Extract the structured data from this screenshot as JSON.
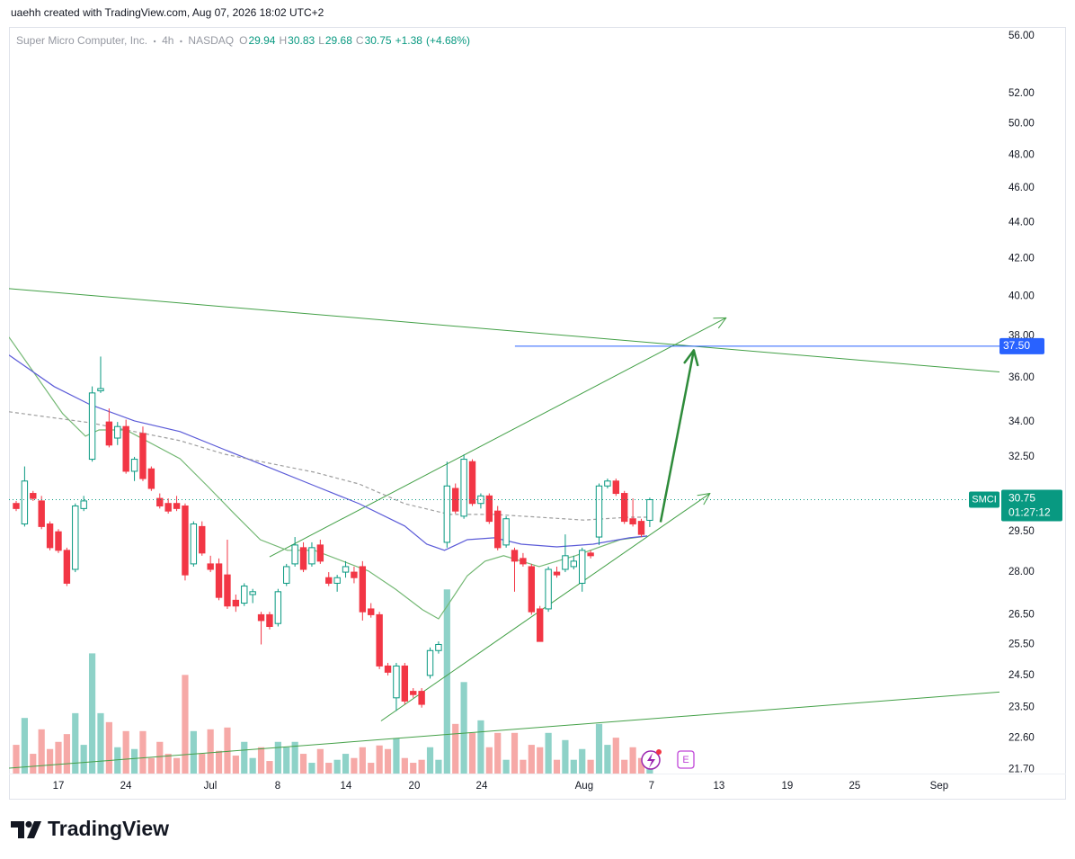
{
  "header": {
    "credit": "uaehh created with TradingView.com, Aug 07, 2026 18:02 UTC+2"
  },
  "chart_data": {
    "type": "candlestick",
    "symbol": "Super Micro Computer, Inc.",
    "interval": "4h",
    "exchange": "NASDAQ",
    "legend_ohlc": [
      {
        "label": "O",
        "value": 29.94
      },
      {
        "label": "H",
        "value": 30.83
      },
      {
        "label": "L",
        "value": 29.68
      },
      {
        "label": "C",
        "value": 30.75
      }
    ],
    "change": "+1.38",
    "change_pct": "(+4.68%)",
    "open": [
      30.6,
      29.8,
      31.0,
      30.7,
      29.8,
      29.5,
      28.8,
      28.1,
      30.4,
      32.4,
      35.4,
      34.0,
      33.3,
      33.8,
      31.9,
      33.5,
      32.0,
      30.8,
      30.6,
      30.6,
      30.5,
      28.3,
      29.7,
      28.3,
      28.3,
      27.9,
      27.0,
      26.9,
      27.2,
      26.5,
      26.5,
      26.2,
      27.6,
      28.3,
      28.9,
      28.3,
      29.0,
      27.8,
      27.6,
      28.0,
      28.0,
      28.2,
      26.7,
      26.5,
      24.8,
      23.8,
      24.8,
      24.0,
      24.0,
      24.5,
      25.3,
      29.1,
      31.2,
      30.1,
      32.3,
      30.6,
      30.9,
      30.3,
      29.0,
      28.8,
      28.5,
      28.2,
      26.7,
      26.7,
      28.0,
      28.1,
      28.2,
      27.6,
      28.7,
      29.3,
      31.3,
      31.5,
      31.0,
      30.0,
      29.9,
      29.94
    ],
    "high": [
      30.7,
      32.1,
      31.1,
      30.9,
      29.9,
      29.6,
      28.9,
      30.6,
      30.9,
      35.6,
      37.0,
      34.6,
      34.0,
      34.1,
      32.5,
      33.8,
      32.1,
      31.0,
      30.8,
      30.9,
      30.6,
      29.9,
      29.9,
      28.6,
      28.5,
      29.2,
      27.2,
      27.6,
      27.4,
      26.6,
      26.6,
      27.4,
      28.3,
      29.3,
      29.1,
      29.1,
      29.2,
      28.0,
      27.9,
      28.4,
      28.2,
      28.4,
      26.9,
      26.6,
      24.9,
      24.9,
      24.9,
      24.1,
      24.1,
      25.4,
      25.6,
      32.3,
      31.4,
      32.6,
      32.4,
      31.0,
      31.0,
      30.5,
      30.1,
      28.9,
      28.7,
      28.3,
      26.8,
      28.2,
      28.2,
      29.4,
      28.6,
      28.9,
      28.8,
      31.4,
      31.6,
      31.6,
      31.1,
      30.8,
      30.0,
      30.83
    ],
    "low": [
      30.3,
      29.7,
      30.7,
      29.6,
      28.8,
      28.7,
      27.5,
      28.0,
      30.3,
      32.3,
      35.3,
      32.9,
      33.0,
      31.8,
      31.5,
      31.5,
      31.1,
      30.4,
      30.2,
      30.3,
      27.7,
      28.2,
      28.6,
      28.0,
      27.0,
      26.7,
      26.6,
      26.8,
      26.9,
      25.5,
      26.0,
      26.1,
      27.5,
      28.2,
      28.0,
      28.2,
      28.3,
      27.5,
      27.3,
      27.8,
      27.6,
      26.3,
      26.4,
      24.7,
      24.5,
      23.4,
      23.6,
      23.8,
      23.5,
      24.4,
      25.2,
      28.9,
      30.2,
      30.0,
      30.5,
      30.4,
      29.8,
      28.8,
      28.9,
      27.3,
      28.2,
      26.5,
      25.6,
      26.6,
      27.8,
      28.0,
      28.1,
      27.3,
      28.5,
      29.0,
      31.2,
      30.9,
      29.8,
      29.7,
      29.3,
      29.68
    ],
    "close": [
      30.4,
      31.5,
      30.8,
      29.7,
      28.9,
      28.8,
      27.6,
      30.5,
      30.7,
      35.3,
      35.5,
      33.0,
      33.8,
      31.9,
      32.4,
      31.6,
      31.2,
      30.5,
      30.3,
      30.4,
      27.9,
      29.8,
      28.7,
      28.1,
      27.1,
      26.8,
      26.8,
      27.5,
      27.3,
      26.3,
      26.1,
      27.3,
      28.2,
      29.0,
      28.1,
      28.9,
      28.4,
      27.6,
      27.8,
      28.2,
      27.8,
      26.6,
      26.5,
      24.8,
      24.6,
      24.8,
      23.7,
      23.9,
      23.6,
      25.3,
      25.5,
      31.3,
      30.3,
      32.4,
      30.6,
      30.9,
      29.9,
      28.9,
      30.0,
      28.4,
      28.3,
      26.6,
      25.6,
      28.1,
      27.9,
      28.6,
      28.4,
      28.8,
      28.6,
      31.3,
      31.5,
      31.0,
      29.9,
      29.8,
      29.4,
      30.75
    ],
    "volume": [
      4.8,
      9.3,
      3.3,
      7.4,
      4.1,
      5.3,
      6.6,
      10.1,
      4.8,
      20.1,
      10.1,
      8.6,
      4.4,
      7.1,
      4.1,
      7.1,
      2.6,
      5.3,
      3.3,
      2.6,
      16.5,
      7.1,
      3.3,
      7.4,
      3.8,
      7.7,
      3.0,
      5.3,
      2.6,
      4.4,
      2.1,
      5.3,
      4.4,
      5.3,
      3.3,
      1.8,
      4.1,
      1.8,
      2.3,
      3.3,
      2.6,
      4.4,
      1.8,
      4.7,
      4.1,
      5.9,
      2.6,
      1.8,
      2.3,
      4.4,
      2.3,
      30.8,
      8.3,
      15.3,
      6.8,
      8.9,
      4.4,
      6.8,
      2.3,
      6.8,
      2.3,
      4.8,
      4.4,
      6.8,
      2.3,
      5.6,
      2.3,
      4.1,
      2.3,
      8.3,
      4.8,
      6.0,
      2.3,
      4.4,
      2.6,
      1.8
    ],
    "up_color": "#089981",
    "down_color": "#f23645",
    "up_volume_color": "#8ed2c8",
    "down_volume_color": "#f6a9a7",
    "log_scale": true,
    "grid": false,
    "xlim": [
      -0.85,
      116.4
    ],
    "xticks": [
      {
        "value": 5.0,
        "label": "17"
      },
      {
        "value": 12.98,
        "label": "24"
      },
      {
        "value": 22.98,
        "label": "Jul"
      },
      {
        "value": 30.96,
        "label": "8"
      },
      {
        "value": 39.04,
        "label": "14"
      },
      {
        "value": 47.13,
        "label": "20"
      },
      {
        "value": 55.11,
        "label": "24"
      },
      {
        "value": 67.23,
        "label": "Aug"
      },
      {
        "value": 75.21,
        "label": "7"
      },
      {
        "value": 83.19,
        "label": "13"
      },
      {
        "value": 91.28,
        "label": "19"
      },
      {
        "value": 99.26,
        "label": "25"
      },
      {
        "value": 109.26,
        "label": "Sep"
      }
    ],
    "ylim": [
      21.58,
      56.66
    ],
    "yticks": [
      {
        "value": 56,
        "label": "56.00"
      },
      {
        "value": 52,
        "label": "52.00"
      },
      {
        "value": 50,
        "label": "50.00"
      },
      {
        "value": 48,
        "label": "48.00"
      },
      {
        "value": 46,
        "label": "46.00"
      },
      {
        "value": 44,
        "label": "44.00"
      },
      {
        "value": 42,
        "label": "42.00"
      },
      {
        "value": 40,
        "label": "40.00"
      },
      {
        "value": 38,
        "label": "38.00"
      },
      {
        "value": 36,
        "label": "36.00"
      },
      {
        "value": 34,
        "label": "34.00"
      },
      {
        "value": 32.5,
        "label": "32.50"
      },
      {
        "value": 29.5,
        "label": "29.50"
      },
      {
        "value": 28,
        "label": "28.00"
      },
      {
        "value": 26.5,
        "label": "26.50"
      },
      {
        "value": 25.5,
        "label": "25.50"
      },
      {
        "value": 24.5,
        "label": "24.50"
      },
      {
        "value": 23.5,
        "label": "23.50"
      },
      {
        "value": 22.6,
        "label": "22.60"
      },
      {
        "value": 21.7,
        "label": "21.70"
      }
    ],
    "volume_lim": [
      0,
      34
    ],
    "moving_averages": [
      {
        "color": "#74b874",
        "x": [
          -0.85,
          5.5,
          8.2,
          9.8,
          13.0,
          19.4,
          22.6,
          25.7,
          28.9,
          32.1,
          35.3,
          41.7,
          44.9,
          48.1,
          50,
          51.3,
          53.4,
          55.5,
          57.7,
          61.9,
          66.2,
          71.5,
          74.7
        ],
        "values": [
          37.94,
          34.37,
          33.38,
          33.65,
          33.65,
          32.42,
          31.31,
          30.24,
          29.2,
          28.8,
          28.8,
          28.04,
          27.39,
          26.67,
          26.36,
          26.92,
          27.87,
          28.4,
          28.6,
          28.2,
          28.6,
          29.2,
          29.34
        ]
      },
      {
        "color": "#5b5bd8",
        "x": [
          -0.85,
          4.5,
          8.7,
          14.0,
          19.4,
          24.7,
          30.0,
          35.3,
          40.6,
          46.0,
          48.6,
          50.7,
          53.4,
          56.6,
          59.8,
          64.0,
          68.3,
          72.6,
          74.7
        ],
        "values": [
          37.07,
          35.59,
          34.78,
          34.05,
          33.58,
          32.8,
          32.05,
          31.31,
          30.59,
          29.72,
          29.03,
          28.8,
          29.2,
          29.27,
          29.03,
          28.93,
          29.03,
          29.27,
          29.34
        ]
      },
      {
        "color": "#9e9e9e",
        "dashed": true,
        "x": [
          -0.85,
          8.7,
          14.0,
          19.4,
          24.7,
          30.0,
          35.3,
          40.6,
          46.0,
          51.3,
          56.6,
          61.9,
          67.2,
          72.6,
          74.7
        ],
        "values": [
          34.45,
          33.97,
          33.58,
          33.19,
          32.61,
          32.23,
          31.86,
          31.38,
          30.59,
          30.17,
          30.17,
          30.06,
          29.95,
          30.06,
          30.06
        ]
      }
    ],
    "trend_lines": [
      {
        "color": "#43a047",
        "x": [
          -0.85,
          116.4
        ],
        "values": [
          40.4,
          36.27
        ]
      },
      {
        "color": "#43a047",
        "x": [
          30.0,
          84.04
        ],
        "values": [
          28.56,
          38.9
        ],
        "arrow": true
      },
      {
        "color": "#43a047",
        "x": [
          43.19,
          82.13
        ],
        "values": [
          23.1,
          31.0
        ],
        "arrow": true
      },
      {
        "color": "#43a047",
        "x": [
          -0.85,
          116.4
        ],
        "values": [
          21.73,
          23.98
        ]
      },
      {
        "color": "#2e8b3a",
        "x": [
          76.28,
          80.21
        ],
        "values": [
          29.87,
          37.3
        ],
        "arrow": true,
        "width": 2.5
      }
    ],
    "horizontal_line": {
      "value": 37.5,
      "label": "37.50",
      "color": "#2962ff",
      "x_start": 59.04
    },
    "last_price": {
      "symbol": "SMCI",
      "value": 30.75,
      "countdown": "01:27:12"
    },
    "earnings_marker": "E"
  },
  "footer": {
    "logo": "TradingView"
  }
}
